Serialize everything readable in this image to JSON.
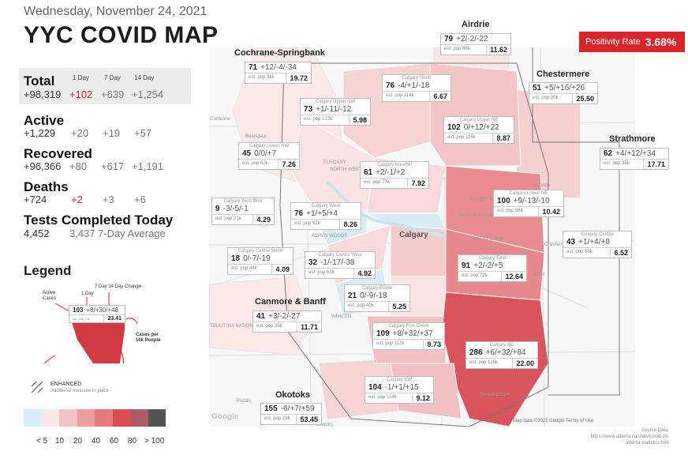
{
  "header": {
    "date": "Wednesday, November 24, 2021",
    "title": "YYC COVID MAP"
  },
  "stats": {
    "columns": [
      "1 Day",
      "7 Day",
      "14 Day"
    ],
    "total": {
      "label": "Total",
      "value": "+98,319",
      "d1": "+102",
      "d7": "+639",
      "d14": "+1,254"
    },
    "active": {
      "label": "Active",
      "value": "+1,229",
      "d1": "+20",
      "d7": "+19",
      "d14": "+57"
    },
    "recovered": {
      "label": "Recovered",
      "value": "+96,366",
      "d1": "+80",
      "d7": "+617",
      "d14": "+1,191"
    },
    "deaths": {
      "label": "Deaths",
      "value": "+724",
      "d1": "+2",
      "d7": "+3",
      "d14": "+6"
    },
    "tests": {
      "label": "Tests Completed Today",
      "value": "4,452",
      "avg_value": "3,437",
      "avg_label": "7-Day Average"
    }
  },
  "legend": {
    "title": "Legend",
    "active_cases": "Active Cases",
    "one_day": "1 Day",
    "seven_fourteen": "7 Day 14 Day Change",
    "sample_count": "103",
    "sample_change": "+8/+30/+48",
    "sample_pop": "est. pop 44k",
    "sample_rate": "23.41",
    "cases_per": "Cases per 10k People",
    "enhanced": "ENHANCED",
    "enhanced_sub": "Additional measure in place",
    "scale_labels": [
      "< 5",
      "10",
      "20",
      "40",
      "60",
      "80",
      "> 100"
    ],
    "scale_colors": [
      "#d9eef5",
      "#fbe7e7",
      "#f4c2c2",
      "#ec9e9e",
      "#e37a7c",
      "#d94e55",
      "#b05a6a",
      "#555555"
    ]
  },
  "positivity": {
    "label": "Positivity Rate",
    "value": "3.68%"
  },
  "map": {
    "city_label": "Calgary",
    "attribution": "Map data ©2021 Google    Terms of Use",
    "google": "Google",
    "labels": [
      "Bearspaw",
      "Cochrane",
      "TUSCANY",
      "NORTH WEST CALGARY",
      "ASPEN WOODS",
      "SADDLE RIDGE",
      "MARLBOROUGH",
      "FOREST LAWN",
      "Conrich",
      "Chestermere",
      "Janet",
      "Priddis",
      "Okotoks",
      "SHAWNESSY",
      "TSUUT'INA NATION 145",
      "White Elk"
    ]
  },
  "regions": {
    "airdrie": {
      "title": "Airdrie",
      "count": "79",
      "change": "+2/-2/-22",
      "pop": "est. pop 68k",
      "rate": "11.62"
    },
    "cochrane": {
      "title": "Cochrane-Springbank",
      "count": "71",
      "change": "+12/-4/-34",
      "pop": "est. pop 36k",
      "rate": "19.72"
    },
    "chestermere": {
      "title": "Chestermere",
      "count": "51",
      "change": "+5/+16/+26",
      "pop": "est. pop 20k",
      "rate": "25.50"
    },
    "strathmore": {
      "title": "Strathmore",
      "count": "62",
      "change": "+4/+12/+34",
      "pop": "est. pop 35k",
      "rate": "17.71"
    },
    "canmore": {
      "title": "Canmore & Banff",
      "count": "41",
      "change": "+3/-2/-27",
      "pop": "est. pop 35k",
      "rate": "11.71"
    },
    "okotoks": {
      "title": "Okotoks",
      "count": "155",
      "change": "-6/+7/+59",
      "pop": "est. pop 29k",
      "rate": "53.45"
    },
    "north": {
      "name": "Calgary North",
      "count": "76",
      "change": "-4/+1/-18",
      "pop": "est. pop 114k",
      "rate": "6.67"
    },
    "upper_nw": {
      "name": "Calgary Upper NW",
      "count": "73",
      "change": "+1/-11/-12",
      "pop": "est. pop 122k",
      "rate": "5.98"
    },
    "upper_ne": {
      "name": "Calgary Upper NE",
      "count": "102",
      "change": "0/+12/+22",
      "pop": "est. pop 115k",
      "rate": "8.87"
    },
    "lower_nw": {
      "name": "Calgary Lower NW",
      "count": "45",
      "change": "0/0/+7",
      "pop": "est. pop 62k",
      "rate": "7.26"
    },
    "nosehill": {
      "name": "Calgary Nosehill",
      "count": "61",
      "change": "+2/-1/+2",
      "pop": "est. pop 77k",
      "rate": "7.92"
    },
    "west_bow": {
      "name": "Calgary West Bow",
      "count": "9",
      "change": "-3/-5/-1",
      "pop": "est. pop 21k",
      "rate": "4.29"
    },
    "west": {
      "name": "Calgary West",
      "count": "76",
      "change": "+1/+5/+4",
      "pop": "est. pop 92k",
      "rate": "8.26"
    },
    "lower_ne": {
      "name": "Calgary Lower NE",
      "count": "100",
      "change": "+9/-13/-10",
      "pop": "est. pop 96k",
      "rate": "10.42"
    },
    "centre_north": {
      "name": "Calgary Centre North",
      "count": "18",
      "change": "0/-7/-19",
      "pop": "est. pop 44k",
      "rate": "4.09"
    },
    "centre_west": {
      "name": "Calgary Centre West",
      "count": "32",
      "change": "-1/-17/-38",
      "pop": "est. pop 65k",
      "rate": "4.92"
    },
    "centre": {
      "name": "Calgary Centre",
      "count": "43",
      "change": "+1/+4/+8",
      "pop": "est. pop 66k",
      "rate": "6.52"
    },
    "east": {
      "name": "Calgary East",
      "count": "91",
      "change": "+2/-2/+5",
      "pop": "est. pop 72k",
      "rate": "12.64"
    },
    "elbow": {
      "name": "Calgary Elbow",
      "count": "21",
      "change": "0/-9/-18",
      "pop": "est. pop 40k",
      "rate": "5.25"
    },
    "fish_creek": {
      "name": "Calgary Fish Creek",
      "count": "109",
      "change": "+8/+32/+37",
      "pop": "est. pop 112k",
      "rate": "9.73"
    },
    "se": {
      "name": "Calgary SE",
      "count": "286",
      "change": "+6/+32/+84",
      "pop": "est. pop 130k",
      "rate": "22.00"
    },
    "sw": {
      "name": "Calgary SW",
      "count": "104",
      "change": "-1/+1/+15",
      "pop": "est. pop 114k",
      "rate": "9.12"
    }
  },
  "source": {
    "label": "Source Data:",
    "url": "https://www.alberta.ca/stats/covid-19-alberta-statistics.htm"
  }
}
